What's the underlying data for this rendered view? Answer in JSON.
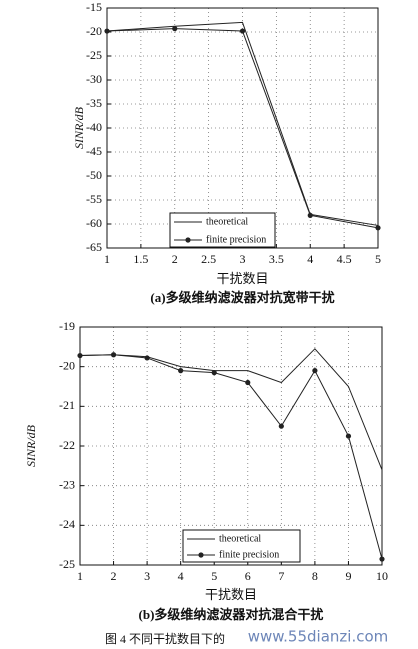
{
  "chart_data": [
    {
      "type": "line",
      "xlabel": "干扰数目",
      "ylabel": "SINR/dB",
      "caption": "(a)多级维纳滤波器对抗宽带干扰",
      "x": [
        1,
        2,
        3,
        4,
        5
      ],
      "xlim": [
        1,
        5
      ],
      "xticks": [
        1,
        1.5,
        2,
        2.5,
        3,
        3.5,
        4,
        4.5,
        5
      ],
      "ylim": [
        -65,
        -15
      ],
      "yticks": [
        -65,
        -60,
        -55,
        -50,
        -45,
        -40,
        -35,
        -30,
        -25,
        -20,
        -15
      ],
      "grid": true,
      "legend": "lower right",
      "series": [
        {
          "name": "theoretical",
          "color": "#222222",
          "marker": "none",
          "values": [
            -19.8,
            -18.8,
            -18,
            -58,
            -60.3
          ]
        },
        {
          "name": "finite precision",
          "color": "#222222",
          "marker": "dot",
          "values": [
            -19.8,
            -19.3,
            -19.8,
            -58.2,
            -60.8
          ]
        }
      ]
    },
    {
      "type": "line",
      "xlabel": "干扰数目",
      "ylabel": "SINR/dB",
      "caption": "(b)多级维纳滤波器对抗混合干扰",
      "x": [
        1,
        2,
        3,
        4,
        5,
        6,
        7,
        8,
        9,
        10
      ],
      "xlim": [
        1,
        10
      ],
      "xticks": [
        1,
        2,
        3,
        4,
        5,
        6,
        7,
        8,
        9,
        10
      ],
      "ylim": [
        -25,
        -19
      ],
      "yticks": [
        -25,
        -24,
        -23,
        -22,
        -21,
        -20,
        -19
      ],
      "grid": true,
      "legend": "lower right",
      "series": [
        {
          "name": "theoretical",
          "color": "#222222",
          "marker": "none",
          "values": [
            -19.72,
            -19.7,
            -19.75,
            -20.0,
            -20.1,
            -20.1,
            -20.4,
            -19.55,
            -20.5,
            -22.6
          ]
        },
        {
          "name": "finite precision",
          "color": "#222222",
          "marker": "dot",
          "values": [
            -19.72,
            -19.7,
            -19.78,
            -20.1,
            -20.15,
            -20.4,
            -21.5,
            -20.1,
            -21.75,
            -24.85
          ]
        }
      ]
    }
  ],
  "figure_caption": "图 4   不同干扰数目下的",
  "watermark": "www.55dianzi.com"
}
